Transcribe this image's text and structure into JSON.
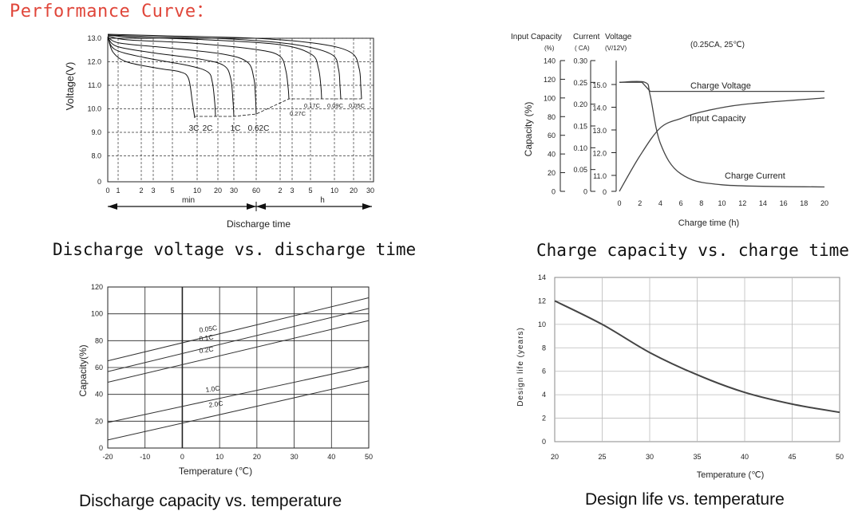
{
  "page_title": "Performance Curve：",
  "chart_data": [
    {
      "type": "line",
      "title": "",
      "caption": "Discharge voltage vs. discharge time",
      "ylabel": "Voltage(V)",
      "xlabel": "Discharge time",
      "y_ticks": [
        "13.0",
        "12.0",
        "11.0",
        "10.0",
        "9.0",
        "8.0",
        "0"
      ],
      "x_ticks": [
        "0",
        "1",
        "2",
        "3",
        "5",
        "10",
        "20",
        "30",
        "60",
        "2",
        "3",
        "5",
        "10",
        "20",
        "30"
      ],
      "x_unit_min": "min",
      "x_unit_h": "h",
      "series": [
        {
          "name": "3C"
        },
        {
          "name": "2C"
        },
        {
          "name": "1C"
        },
        {
          "name": "0.6C"
        },
        {
          "name": "0.27C"
        },
        {
          "name": "0.17C"
        },
        {
          "name": "0.09C"
        },
        {
          "name": "0.05C"
        }
      ],
      "curve_labels": [
        "3C",
        "2C",
        "1C",
        "0.62C",
        "0.27C",
        "0.17C",
        "0.09C",
        "0.05C"
      ]
    },
    {
      "type": "line",
      "title": "",
      "caption": "Charge capacity vs. charge time",
      "annotation": "(0.25CA, 25℃)",
      "axis_headers": [
        "Input Capacity",
        "Current",
        "Voltage",
        "(%)",
        "( CA)",
        "(V/12V)"
      ],
      "ylabel": "Capacity (%)",
      "xlabel": "Charge time  (h)",
      "capacity_ticks": [
        140,
        120,
        100,
        80,
        60,
        40,
        20,
        0
      ],
      "current_ticks": [
        "0.30",
        "0.25",
        "0.20",
        "0.15",
        "0.10",
        "0.05",
        "0"
      ],
      "voltage_ticks": [
        "15.0",
        "14.0",
        "13.0",
        "12.0",
        "11.0",
        "0"
      ],
      "x_ticks": [
        0,
        2,
        4,
        6,
        8,
        10,
        12,
        14,
        16,
        18,
        20
      ],
      "series": [
        {
          "name": "Charge Voltage",
          "x": [
            0,
            2.2,
            3.0,
            20
          ],
          "y": [
            15.1,
            15.1,
            14.7,
            14.7
          ]
        },
        {
          "name": "Input Capacity",
          "x": [
            0,
            2,
            4,
            6,
            8,
            12,
            20
          ],
          "y": [
            0,
            38,
            68,
            78,
            85,
            93,
            100
          ]
        },
        {
          "name": "Charge Current",
          "x": [
            0,
            2.5,
            3,
            4,
            6,
            10,
            20
          ],
          "y": [
            0.25,
            0.25,
            0.22,
            0.11,
            0.04,
            0.015,
            0.01
          ]
        }
      ]
    },
    {
      "type": "line",
      "title": "",
      "caption": "Discharge capacity vs. temperature",
      "ylabel": "Capacity(%)",
      "xlabel": "Temperature  (℃)",
      "xlim": [
        -20,
        50
      ],
      "ylim": [
        0,
        120
      ],
      "y_ticks": [
        0,
        20,
        40,
        60,
        80,
        100,
        120
      ],
      "x_ticks": [
        -20,
        -10,
        0,
        10,
        20,
        30,
        40,
        50
      ],
      "series": [
        {
          "name": "0.05C",
          "x": [
            -20,
            50
          ],
          "y": [
            65,
            112
          ]
        },
        {
          "name": "0.1C",
          "x": [
            -20,
            50
          ],
          "y": [
            57,
            104
          ]
        },
        {
          "name": "0.2C",
          "x": [
            -20,
            50
          ],
          "y": [
            49,
            95
          ]
        },
        {
          "name": "1.0C",
          "x": [
            -20,
            50
          ],
          "y": [
            19,
            61
          ]
        },
        {
          "name": "2.0C",
          "x": [
            -20,
            50
          ],
          "y": [
            6,
            50
          ]
        }
      ]
    },
    {
      "type": "line",
      "title": "",
      "caption": "Design life vs. temperature",
      "ylabel": "Design life (years)",
      "xlabel": "Temperature  (℃)",
      "xlim": [
        20,
        50
      ],
      "ylim": [
        0,
        14
      ],
      "y_ticks": [
        0,
        2,
        4,
        6,
        8,
        10,
        12,
        14
      ],
      "x_ticks": [
        20,
        25,
        30,
        35,
        40,
        45,
        50
      ],
      "series": [
        {
          "name": "Design life",
          "x": [
            20,
            25,
            30,
            35,
            40,
            45,
            50
          ],
          "y": [
            12,
            10,
            7.6,
            5.7,
            4.2,
            3.2,
            2.5
          ]
        }
      ]
    }
  ]
}
